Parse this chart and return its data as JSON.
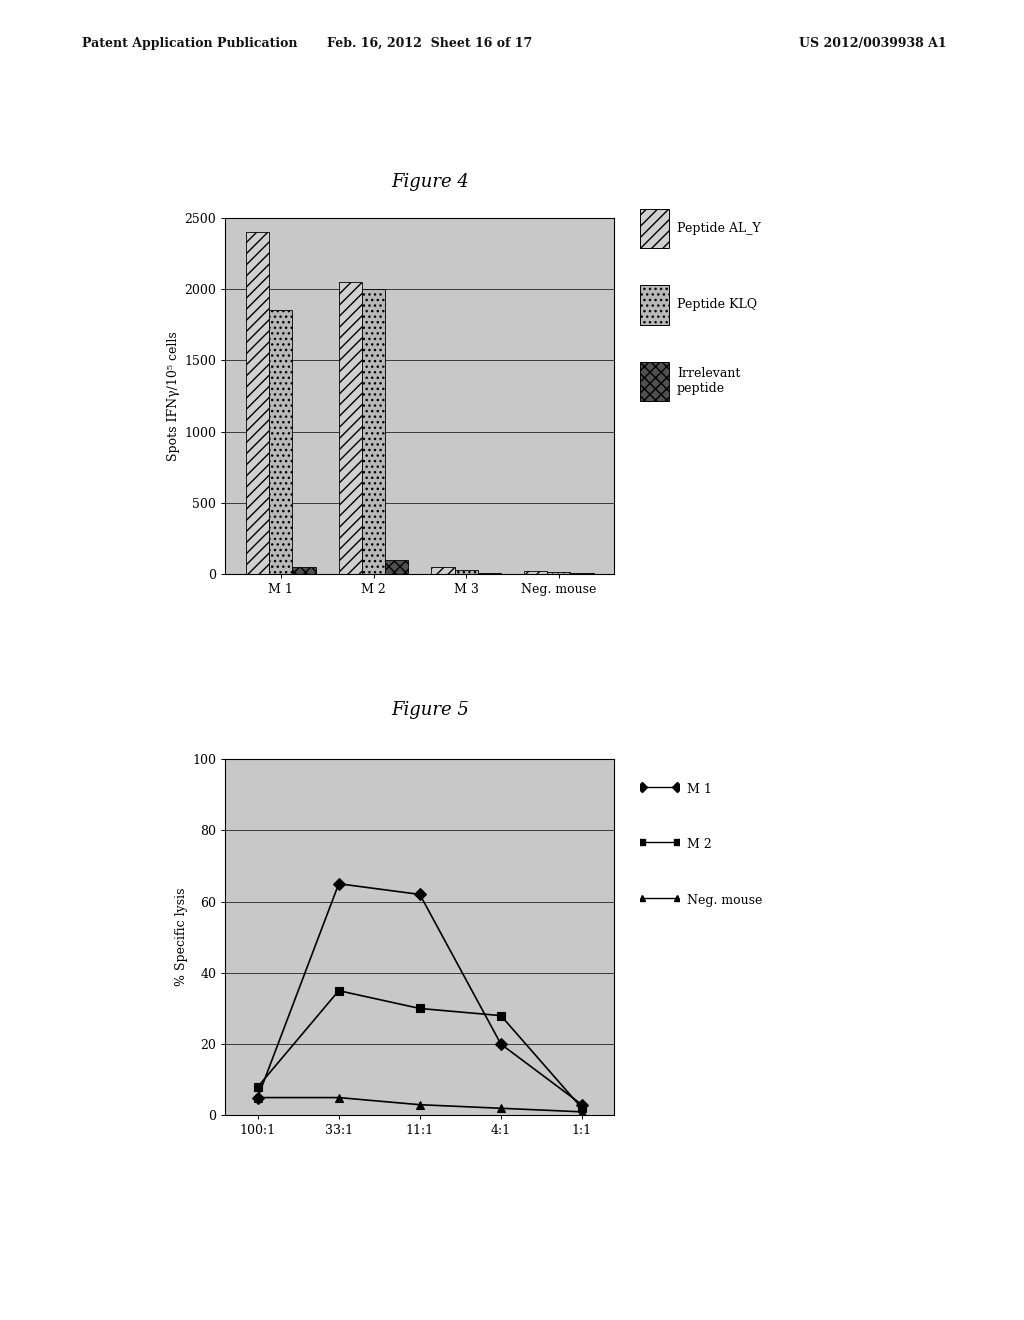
{
  "fig4": {
    "title": "Figure 4",
    "ylabel": "Spots IFNγ/10⁵ cells",
    "groups": [
      "M 1",
      "M 2",
      "M 3",
      "Neg. mouse"
    ],
    "series_labels": [
      "Peptide AL_Y",
      "Peptide KLQ",
      "Irrelevant\npeptide"
    ],
    "values": {
      "ALY": [
        2400,
        2050,
        50,
        20
      ],
      "KLQ": [
        1850,
        2000,
        30,
        15
      ],
      "Irr": [
        50,
        100,
        10,
        5
      ]
    },
    "ylim": [
      0,
      2500
    ],
    "yticks": [
      0,
      500,
      1000,
      1500,
      2000,
      2500
    ],
    "bar_width": 0.25,
    "colors": {
      "ALY": "#d0d0d0",
      "KLQ": "#b8b8b8",
      "Irr": "#505050"
    },
    "hatches": {
      "ALY": "///",
      "KLQ": "...",
      "Irr": "xxx"
    },
    "bg_color": "#c8c8c8"
  },
  "fig5": {
    "title": "Figure 5",
    "ylabel": "% Specific lysis",
    "xtick_labels": [
      "100:1",
      "33:1",
      "11:1",
      "4:1",
      "1:1"
    ],
    "series": {
      "M 1": [
        5,
        65,
        62,
        20,
        3
      ],
      "M 2": [
        8,
        35,
        30,
        28,
        2
      ],
      "Neg. mouse": [
        5,
        5,
        3,
        2,
        1
      ]
    },
    "ylim": [
      0,
      100
    ],
    "yticks": [
      0,
      20,
      40,
      60,
      80,
      100
    ],
    "markers": {
      "M 1": "D",
      "M 2": "s",
      "Neg. mouse": "^"
    },
    "bg_color": "#c8c8c8"
  },
  "page": {
    "header_left": "Patent Application Publication",
    "header_mid": "Feb. 16, 2012  Sheet 16 of 17",
    "header_right": "US 2012/0039938 A1",
    "bg_color": "#ffffff"
  }
}
